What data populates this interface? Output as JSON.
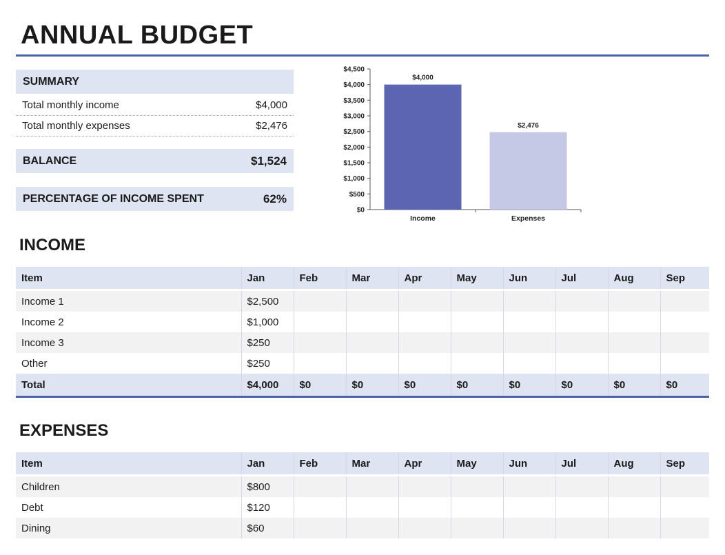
{
  "title": "ANNUAL BUDGET",
  "summary": {
    "heading": "SUMMARY",
    "income_label": "Total monthly income",
    "income_value": "$4,000",
    "expenses_label": "Total monthly expenses",
    "expenses_value": "$2,476",
    "balance_label": "BALANCE",
    "balance_value": "$1,524",
    "pct_label": "PERCENTAGE OF INCOME SPENT",
    "pct_value": "62%"
  },
  "colors": {
    "accent": "#4a63a8",
    "band": "#dfe4f2",
    "income_bar": "#5b65b2",
    "expenses_bar": "#c5c9e6"
  },
  "chart_data": {
    "type": "bar",
    "categories": [
      "Income",
      "Expenses"
    ],
    "values": [
      4000,
      2476
    ],
    "value_labels": [
      "$4,000",
      "$2,476"
    ],
    "yticks": [
      "$0",
      "$500",
      "$1,000",
      "$1,500",
      "$2,000",
      "$2,500",
      "$3,000",
      "$3,500",
      "$4,000",
      "$4,500"
    ],
    "ylim": [
      0,
      4500
    ],
    "title": "",
    "xlabel": "",
    "ylabel": "",
    "grid": false
  },
  "income": {
    "heading": "INCOME",
    "columns": [
      "Item",
      "Jan",
      "Feb",
      "Mar",
      "Apr",
      "May",
      "Jun",
      "Jul",
      "Aug",
      "Sep"
    ],
    "rows": [
      [
        "Income 1",
        "$2,500",
        "",
        "",
        "",
        "",
        "",
        "",
        "",
        ""
      ],
      [
        "Income 2",
        "$1,000",
        "",
        "",
        "",
        "",
        "",
        "",
        "",
        ""
      ],
      [
        "Income 3",
        "$250",
        "",
        "",
        "",
        "",
        "",
        "",
        "",
        ""
      ],
      [
        "Other",
        "$250",
        "",
        "",
        "",
        "",
        "",
        "",
        "",
        ""
      ]
    ],
    "total": [
      "Total",
      "$4,000",
      "$0",
      "$0",
      "$0",
      "$0",
      "$0",
      "$0",
      "$0",
      "$0"
    ]
  },
  "expenses": {
    "heading": "EXPENSES",
    "columns": [
      "Item",
      "Jan",
      "Feb",
      "Mar",
      "Apr",
      "May",
      "Jun",
      "Jul",
      "Aug",
      "Sep"
    ],
    "rows": [
      [
        "Children",
        "$800",
        "",
        "",
        "",
        "",
        "",
        "",
        "",
        ""
      ],
      [
        "Debt",
        "$120",
        "",
        "",
        "",
        "",
        "",
        "",
        "",
        ""
      ],
      [
        "Dining",
        "$60",
        "",
        "",
        "",
        "",
        "",
        "",
        "",
        ""
      ]
    ]
  }
}
